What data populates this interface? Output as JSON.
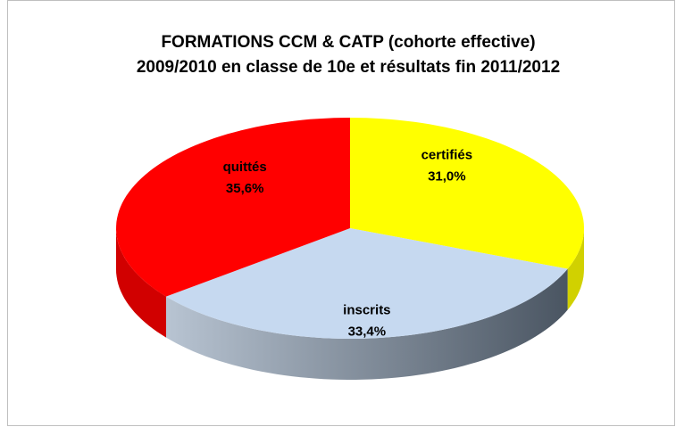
{
  "chart_data": {
    "type": "pie",
    "title": "FORMATIONS CCM & CATP (cohorte effective)",
    "subtitle": "2009/2010 en classe de 10e et résultats fin 2011/2012",
    "categories": [
      "certifiés",
      "inscrits",
      "quittés"
    ],
    "values": [
      31.0,
      33.4,
      35.6
    ],
    "value_labels": [
      "31,0%",
      "33,4%",
      "35,6%"
    ],
    "colors": [
      "#ffff00",
      "#c6d9f0",
      "#ff0000"
    ]
  }
}
